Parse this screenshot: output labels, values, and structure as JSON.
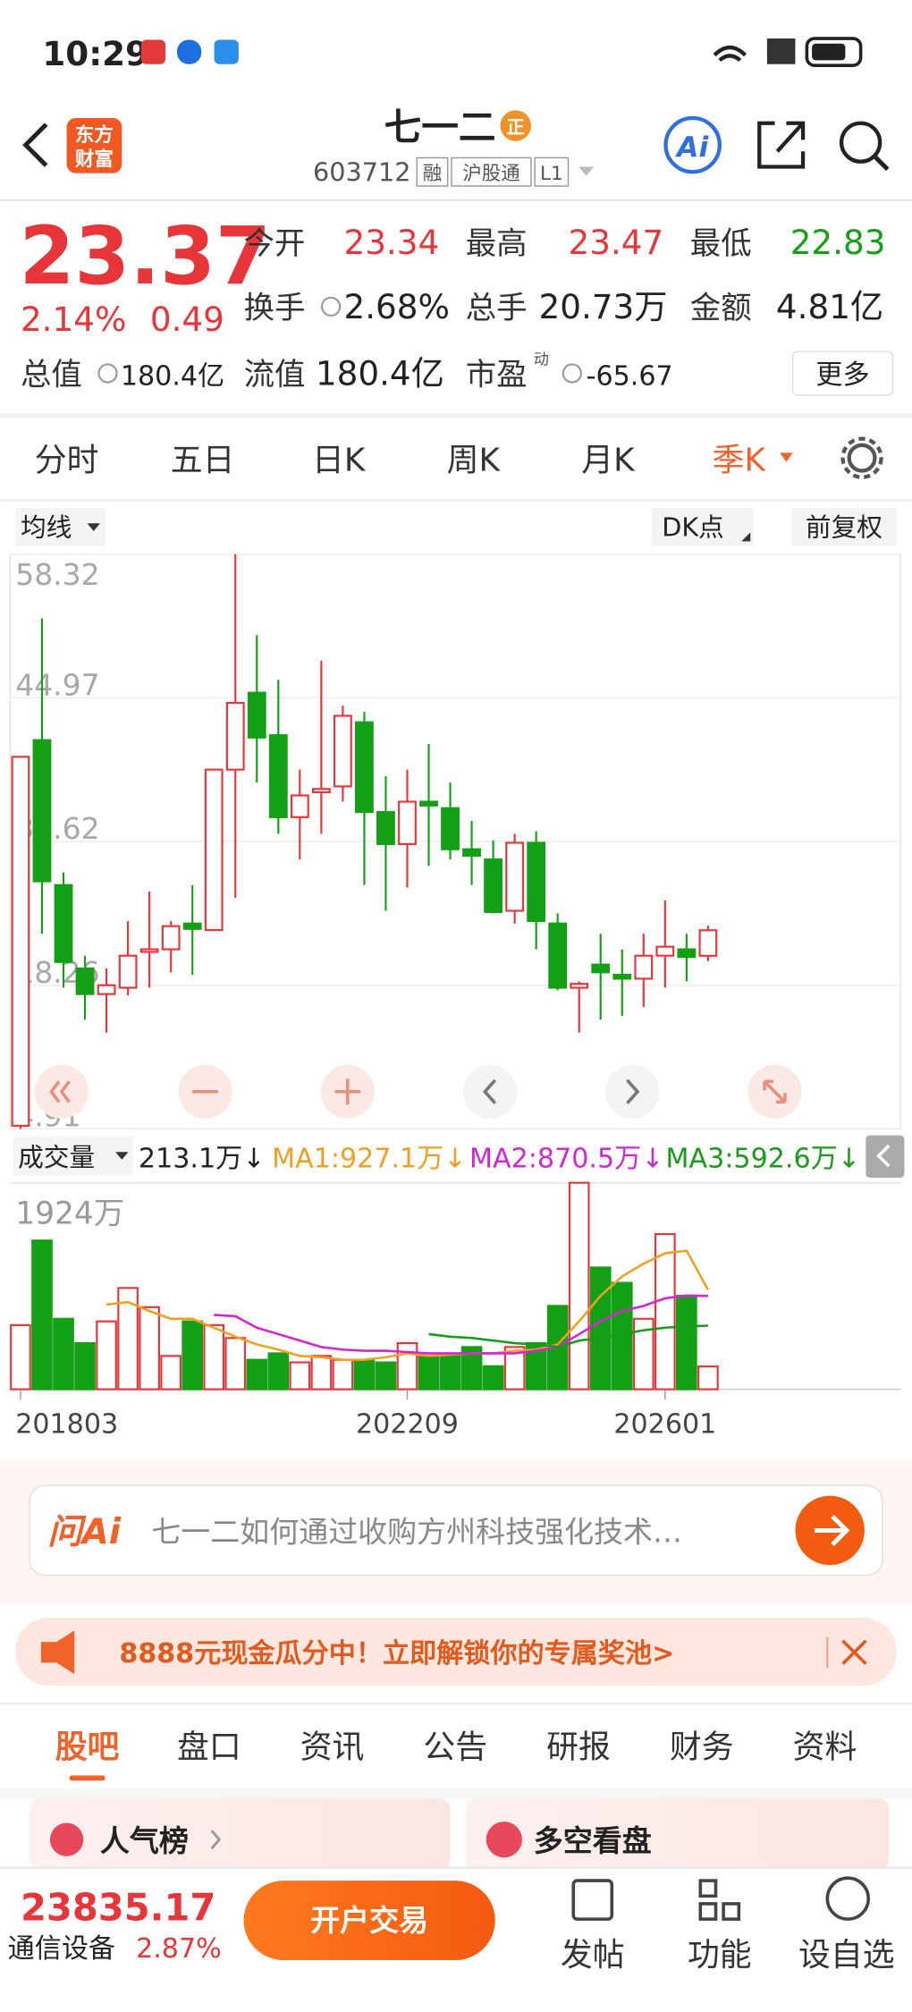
{
  "status_bar": {
    "time": "10:29"
  },
  "header": {
    "logo": [
      "东方",
      "财富"
    ],
    "title": "七一二",
    "badge": "正",
    "code": "603712",
    "tags": [
      "融",
      "沪股通",
      "L1"
    ],
    "ai": "Ai"
  },
  "quote": {
    "price": "23.37",
    "change_pct": "2.14%",
    "change": "0.49",
    "fields": [
      {
        "label": "今开",
        "value": "23.34"
      },
      {
        "label": "最高",
        "value": "23.47"
      },
      {
        "label": "最低",
        "value": "22.83"
      },
      {
        "label": "换手",
        "value": "2.68%"
      },
      {
        "label": "总手",
        "value": "20.73万"
      },
      {
        "label": "金额",
        "value": "4.81亿"
      },
      {
        "label": "总值",
        "value": "180.4亿"
      },
      {
        "label": "流值",
        "value": "180.4亿"
      },
      {
        "label": "市盈",
        "value": "-65.67",
        "sup": "动"
      }
    ],
    "more": "更多"
  },
  "period_tabs": [
    "分时",
    "五日",
    "日K",
    "周K",
    "月K",
    "季K"
  ],
  "toolbar": {
    "ma": "均线",
    "dk": "DK点",
    "adjust": "前复权"
  },
  "chart_data": [
    {
      "type": "candlestick",
      "up_color": "#e8353a",
      "down_color": "#14a014",
      "open": [
        5.2,
        41.04,
        27.57,
        19.82,
        17.44,
        18.03,
        21.36,
        21.6,
        24.0,
        23.39,
        38.3,
        45.45,
        41.5,
        33.88,
        36.2,
        36.74,
        42.7,
        34.36,
        31.38,
        35.32,
        34.72,
        30.9,
        29.95,
        25.18,
        31.5,
        24.0,
        18.03,
        20.18,
        19.23,
        18.87,
        21.01,
        21.6,
        21.0
      ],
      "high": [
        39.49,
        52.36,
        28.76,
        21.01,
        19.82,
        24.23,
        26.97,
        24.23,
        27.57,
        38.3,
        58.32,
        50.81,
        46.64,
        38.3,
        48.43,
        44.25,
        43.66,
        37.7,
        38.3,
        40.68,
        37.1,
        33.52,
        31.74,
        32.33,
        32.57,
        24.94,
        18.63,
        23.04,
        21.6,
        23.04,
        26.14,
        23.04,
        23.8
      ],
      "low": [
        4.91,
        23.04,
        18.03,
        15.05,
        13.86,
        17.32,
        18.03,
        19.46,
        19.23,
        23.39,
        26.38,
        37.1,
        32.33,
        29.95,
        32.33,
        35.32,
        27.57,
        25.18,
        27.33,
        29.35,
        29.95,
        27.57,
        24.94,
        23.99,
        21.6,
        17.79,
        13.86,
        15.05,
        15.4,
        16.24,
        18.03,
        18.63,
        20.5
      ],
      "close": [
        39.49,
        27.92,
        20.42,
        17.44,
        18.26,
        21.01,
        21.6,
        23.75,
        23.5,
        38.3,
        44.5,
        41.28,
        33.88,
        35.9,
        36.5,
        43.3,
        34.36,
        31.38,
        35.32,
        34.96,
        30.9,
        30.3,
        25.06,
        31.5,
        24.23,
        18.03,
        18.39,
        19.46,
        18.87,
        21.01,
        21.84,
        20.89,
        23.37
      ],
      "ylim": [
        4.91,
        58.32
      ],
      "yticks": [
        58.32,
        44.97,
        31.62,
        18.26,
        4.91
      ],
      "grid": true
    },
    {
      "type": "bar",
      "title": "成交量",
      "current_label": "213.1万↓",
      "categories": [
        "201803",
        null,
        null,
        null,
        null,
        null,
        null,
        null,
        null,
        null,
        null,
        null,
        null,
        null,
        null,
        null,
        null,
        null,
        "202209",
        null,
        null,
        null,
        null,
        null,
        null,
        null,
        null,
        null,
        null,
        null,
        "202601",
        null,
        null
      ],
      "values": [
        598,
        1386,
        657,
        430,
        633,
        944,
        765,
        311,
        633,
        598,
        478,
        275,
        335,
        251,
        311,
        275,
        275,
        251,
        430,
        311,
        311,
        394,
        215,
        394,
        430,
        777,
        1924,
        1135,
        992,
        657,
        1446,
        872,
        213.1
      ],
      "ylim": [
        0,
        1924
      ],
      "yticks": [
        {
          "value": 1924,
          "label": "1924万"
        }
      ],
      "series": [
        {
          "name": "MA1:927.1万↓",
          "color": "#f0a020",
          "values": [
            null,
            null,
            null,
            null,
            789,
            813,
            729,
            657,
            657,
            574,
            490,
            418,
            370,
            311,
            299,
            275,
            275,
            299,
            335,
            311,
            323,
            335,
            335,
            359,
            370,
            418,
            633,
            872,
            1052,
            1171,
            1267,
            1291,
            927.1
          ]
        },
        {
          "name": "MA2:870.5万↓",
          "color": "#d226d2",
          "values": [
            null,
            null,
            null,
            null,
            null,
            null,
            null,
            null,
            null,
            693,
            681,
            574,
            514,
            454,
            394,
            370,
            359,
            359,
            347,
            335,
            335,
            335,
            335,
            335,
            359,
            394,
            514,
            633,
            729,
            777,
            848,
            873,
            870.5
          ]
        },
        {
          "name": "MA3:592.6万↓",
          "color": "#1a9a1a",
          "values": [
            null,
            null,
            null,
            null,
            null,
            null,
            null,
            null,
            null,
            null,
            null,
            null,
            null,
            null,
            null,
            null,
            null,
            null,
            null,
            514,
            490,
            478,
            454,
            430,
            418,
            394,
            454,
            478,
            514,
            550,
            574,
            586,
            592.6
          ]
        }
      ]
    }
  ],
  "ask_ai": {
    "brand": "问Ai",
    "placeholder": "七一二如何通过收购方州科技强化技术…"
  },
  "promo": "8888元现金瓜分中！立即解锁你的专属奖池>",
  "info_tabs": [
    "股吧",
    "盘口",
    "资讯",
    "公告",
    "研报",
    "财务",
    "资料"
  ],
  "cards": [
    "人气榜",
    "多空看盘"
  ],
  "footer": {
    "index": "23835.17",
    "sector": "通信设备",
    "sector_change": "2.87%",
    "open_account": "开户交易",
    "actions": [
      "发帖",
      "功能",
      "设自选"
    ]
  }
}
